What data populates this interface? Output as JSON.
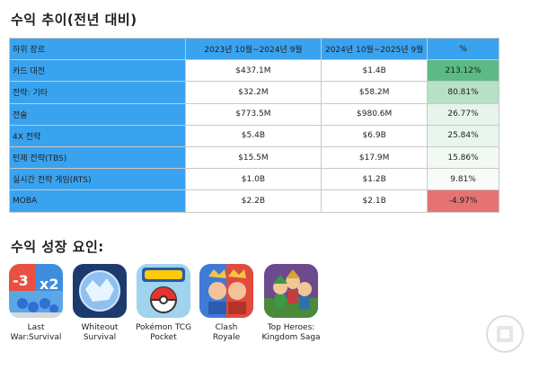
{
  "revenue_section": {
    "title": "수익 추이(전년 대비)",
    "headers": [
      "하위 장르",
      "2023년 10월~2024년 9월",
      "2024년 10월~2025년 9월",
      "%"
    ],
    "rows": [
      {
        "genre": "카드 대전",
        "prev": "$437.1M",
        "curr": "$1.4B",
        "pct": "213.12%",
        "color": "#5cba84"
      },
      {
        "genre": "전략: 기타",
        "prev": "$32.2M",
        "curr": "$58.2M",
        "pct": "80.81%",
        "color": "#b7e0c6"
      },
      {
        "genre": "전술",
        "prev": "$773.5M",
        "curr": "$980.6M",
        "pct": "26.77%",
        "color": "#e7f4eb"
      },
      {
        "genre": "4X 전략",
        "prev": "$5.4B",
        "curr": "$6.9B",
        "pct": "25.84%",
        "color": "#e8f5ec"
      },
      {
        "genre": "턴제 전략(TBS)",
        "prev": "$15.5M",
        "curr": "$17.9M",
        "pct": "15.86%",
        "color": "#f1f9f3"
      },
      {
        "genre": "실시간 전략 게임(RTS)",
        "prev": "$1.0B",
        "curr": "$1.2B",
        "pct": "9.81%",
        "color": "#f7fbf8"
      },
      {
        "genre": "MOBA",
        "prev": "$2.2B",
        "curr": "$2.1B",
        "pct": "-4.97%",
        "color": "#e57373"
      }
    ]
  },
  "growth_section": {
    "title": "수익 성장 요인:",
    "games": [
      {
        "name_line1": "Last",
        "name_line2": "War:Survival",
        "icon": "last-war-icon"
      },
      {
        "name_line1": "Whiteout",
        "name_line2": "Survival",
        "icon": "whiteout-icon"
      },
      {
        "name_line1": "Pokémon TCG",
        "name_line2": "Pocket",
        "icon": "pokemon-tcg-icon"
      },
      {
        "name_line1": "Clash",
        "name_line2": "Royale",
        "icon": "clash-royale-icon"
      },
      {
        "name_line1": "Top Heroes:",
        "name_line2": "Kingdom Saga",
        "icon": "top-heroes-icon"
      }
    ]
  }
}
